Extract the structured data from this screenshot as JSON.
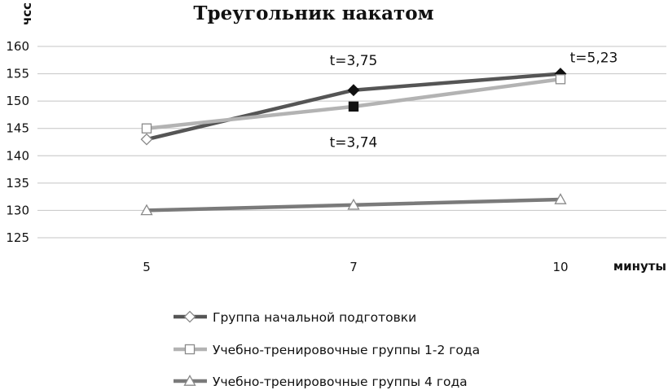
{
  "chart_data": {
    "type": "line",
    "title": "Треугольник накатом",
    "xlabel": "минуты",
    "ylabel": "чсс",
    "categories": [
      "5",
      "7",
      "10"
    ],
    "ylim": [
      125,
      160
    ],
    "yticks": [
      125,
      130,
      135,
      140,
      145,
      150,
      155,
      160
    ],
    "grid": true,
    "legend_position": "bottom",
    "series": [
      {
        "name": "Группа начальной подготовки",
        "values": [
          143,
          152,
          155
        ],
        "color": "#555555",
        "marker": "diamond",
        "point_fill": [
          "#ffffff",
          "#111111",
          "#111111"
        ]
      },
      {
        "name": "Учебно-тренировочные группы 1-2 года",
        "values": [
          145,
          149,
          154
        ],
        "color": "#b3b3b3",
        "marker": "square",
        "point_fill": [
          "#ffffff",
          "#111111",
          "#ffffff"
        ]
      },
      {
        "name": "Учебно-тренировочные группы 4 года",
        "values": [
          130,
          131,
          132
        ],
        "color": "#7a7a7a",
        "marker": "triangle",
        "point_fill": [
          "#ffffff",
          "#ffffff",
          "#ffffff"
        ]
      }
    ],
    "annotations": [
      {
        "text": "t=3,75",
        "category": "7",
        "value": 157.5
      },
      {
        "text": "t=3,74",
        "category": "7",
        "value": 142.5
      },
      {
        "text": "t=5,23",
        "category": "10",
        "value": 158
      }
    ]
  }
}
